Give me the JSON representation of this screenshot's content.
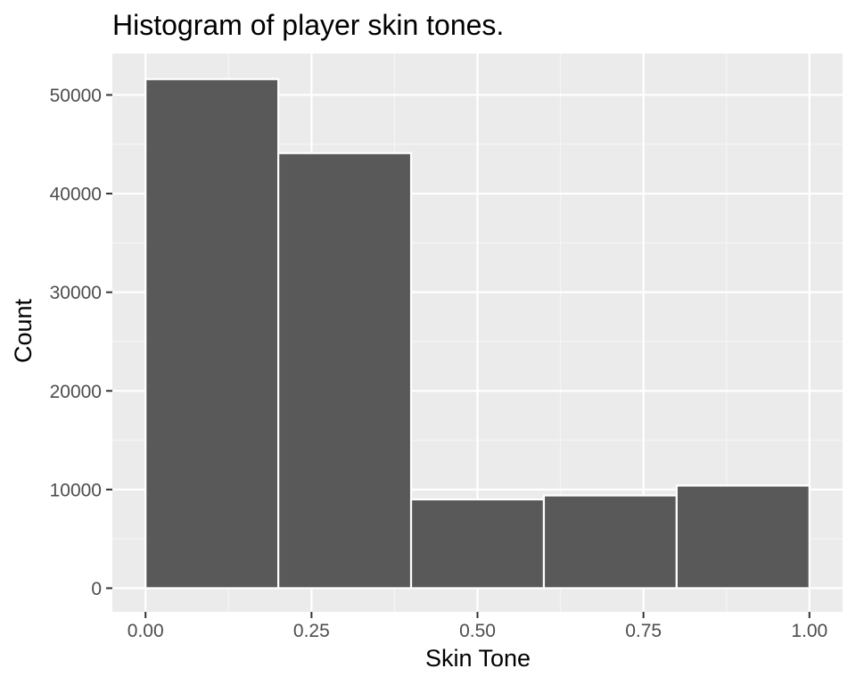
{
  "chart_data": {
    "type": "bar",
    "title": "Histogram of player skin tones.",
    "xlabel": "Skin Tone",
    "ylabel": "Count",
    "xlim": [
      -0.05,
      1.05
    ],
    "ylim": [
      -2400,
      54200
    ],
    "x_ticks": [
      0.0,
      0.25,
      0.5,
      0.75,
      1.0
    ],
    "x_tick_labels": [
      "0.00",
      "0.25",
      "0.50",
      "0.75",
      "1.00"
    ],
    "y_ticks": [
      0,
      10000,
      20000,
      30000,
      40000,
      50000
    ],
    "y_tick_labels": [
      "0",
      "10000",
      "20000",
      "30000",
      "40000",
      "50000"
    ],
    "bins": [
      {
        "x0": 0.0,
        "x1": 0.2,
        "count": 51600
      },
      {
        "x0": 0.2,
        "x1": 0.4,
        "count": 44100
      },
      {
        "x0": 0.4,
        "x1": 0.6,
        "count": 9000
      },
      {
        "x0": 0.6,
        "x1": 0.8,
        "count": 9400
      },
      {
        "x0": 0.8,
        "x1": 1.0,
        "count": 10400
      }
    ],
    "grid": true,
    "colors": {
      "panel_background": "#ebebeb",
      "grid_major": "#ffffff",
      "grid_minor": "#f5f5f5",
      "bar_fill": "#595959",
      "bar_outline": "#ffffff",
      "tick_color": "#333333"
    }
  }
}
